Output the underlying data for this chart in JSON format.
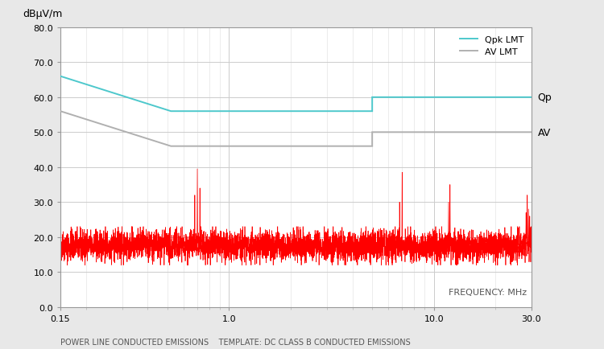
{
  "title": "",
  "ylabel": "dBμV/m",
  "xlabel_freq": "FREQUENCY: MHz",
  "xlabel_bottom": "POWER LINE CONDUCTED EMISSIONS    TEMPLATE: DC CLASS B CONDUCTED EMISSIONS",
  "background_color": "#e8e8e8",
  "plot_bg_color": "#ffffff",
  "xmin": 0.15,
  "xmax": 30.0,
  "ymin": 0.0,
  "ymax": 80.0,
  "yticks": [
    0.0,
    10.0,
    20.0,
    30.0,
    40.0,
    50.0,
    60.0,
    70.0,
    80.0
  ],
  "xtick_vals": [
    0.15,
    1.0,
    10.0,
    30.0
  ],
  "xtick_labels": [
    "0.15",
    "1.0",
    "10.0",
    "30.0"
  ],
  "qpk_lmt_color": "#4dc8cc",
  "av_lmt_color": "#b0b0b0",
  "signal_color": "#ff0000",
  "qpk_segments": [
    [
      0.15,
      66.0
    ],
    [
      0.52,
      56.0
    ],
    [
      5.0,
      56.0
    ],
    [
      5.0,
      60.0
    ],
    [
      30.0,
      60.0
    ]
  ],
  "av_segments": [
    [
      0.15,
      56.0
    ],
    [
      0.52,
      46.0
    ],
    [
      5.0,
      46.0
    ],
    [
      5.0,
      50.0
    ],
    [
      30.0,
      50.0
    ]
  ],
  "legend_qpk": "Qpk LMT",
  "legend_av": "AV LMT",
  "label_qp": "Qp",
  "label_av": "AV",
  "noise_seed": 42,
  "noise_n_points": 5000,
  "noise_base": 17.5,
  "noise_amplitude": 2.2,
  "noise_clip_low": 12.0,
  "noise_clip_high": 23.0,
  "spike_freqs": [
    0.68,
    0.7,
    0.72,
    6.8,
    7.0,
    11.8,
    12.0,
    28.2,
    28.6,
    29.0,
    29.4
  ],
  "spike_heights": [
    32.0,
    39.5,
    34.0,
    30.0,
    38.5,
    30.0,
    35.0,
    27.0,
    32.0,
    28.0,
    26.0
  ]
}
